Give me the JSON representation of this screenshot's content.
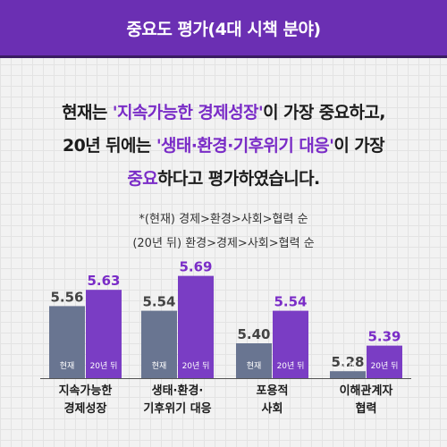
{
  "header": {
    "title": "중요도 평가(4대 시책 분야)"
  },
  "headline": {
    "part1": "현재는 ",
    "hl1": "'지속가능한 경제성장'",
    "part2": "이 가장 중요하고,",
    "part3": "20년 뒤에는 ",
    "hl2": "'생태·환경·기후위기 대응'",
    "part4": "이 가장",
    "hl3": "중요",
    "part5": "하다고 평가하였습니다."
  },
  "notes": {
    "line1": "*(현재) 경제>환경>사회>협력 순",
    "line2": "(20년 뒤) 환경>경제>사회>협력 순"
  },
  "chart_data": {
    "type": "bar",
    "categories": [
      "지속가능한\n경제성장",
      "생태·환경·\n기후위기 대응",
      "포용적\n사회",
      "이해관계자\n협력"
    ],
    "series": [
      {
        "name": "현재",
        "values": [
          5.56,
          5.54,
          5.4,
          5.28
        ],
        "color": "#697591",
        "label_color": "#444444"
      },
      {
        "name": "20년 뒤",
        "values": [
          5.63,
          5.69,
          5.54,
          5.39
        ],
        "color": "#7a3dc4",
        "label_color": "#7a2cc7"
      }
    ],
    "legend": "inside-bars",
    "grid": false
  }
}
